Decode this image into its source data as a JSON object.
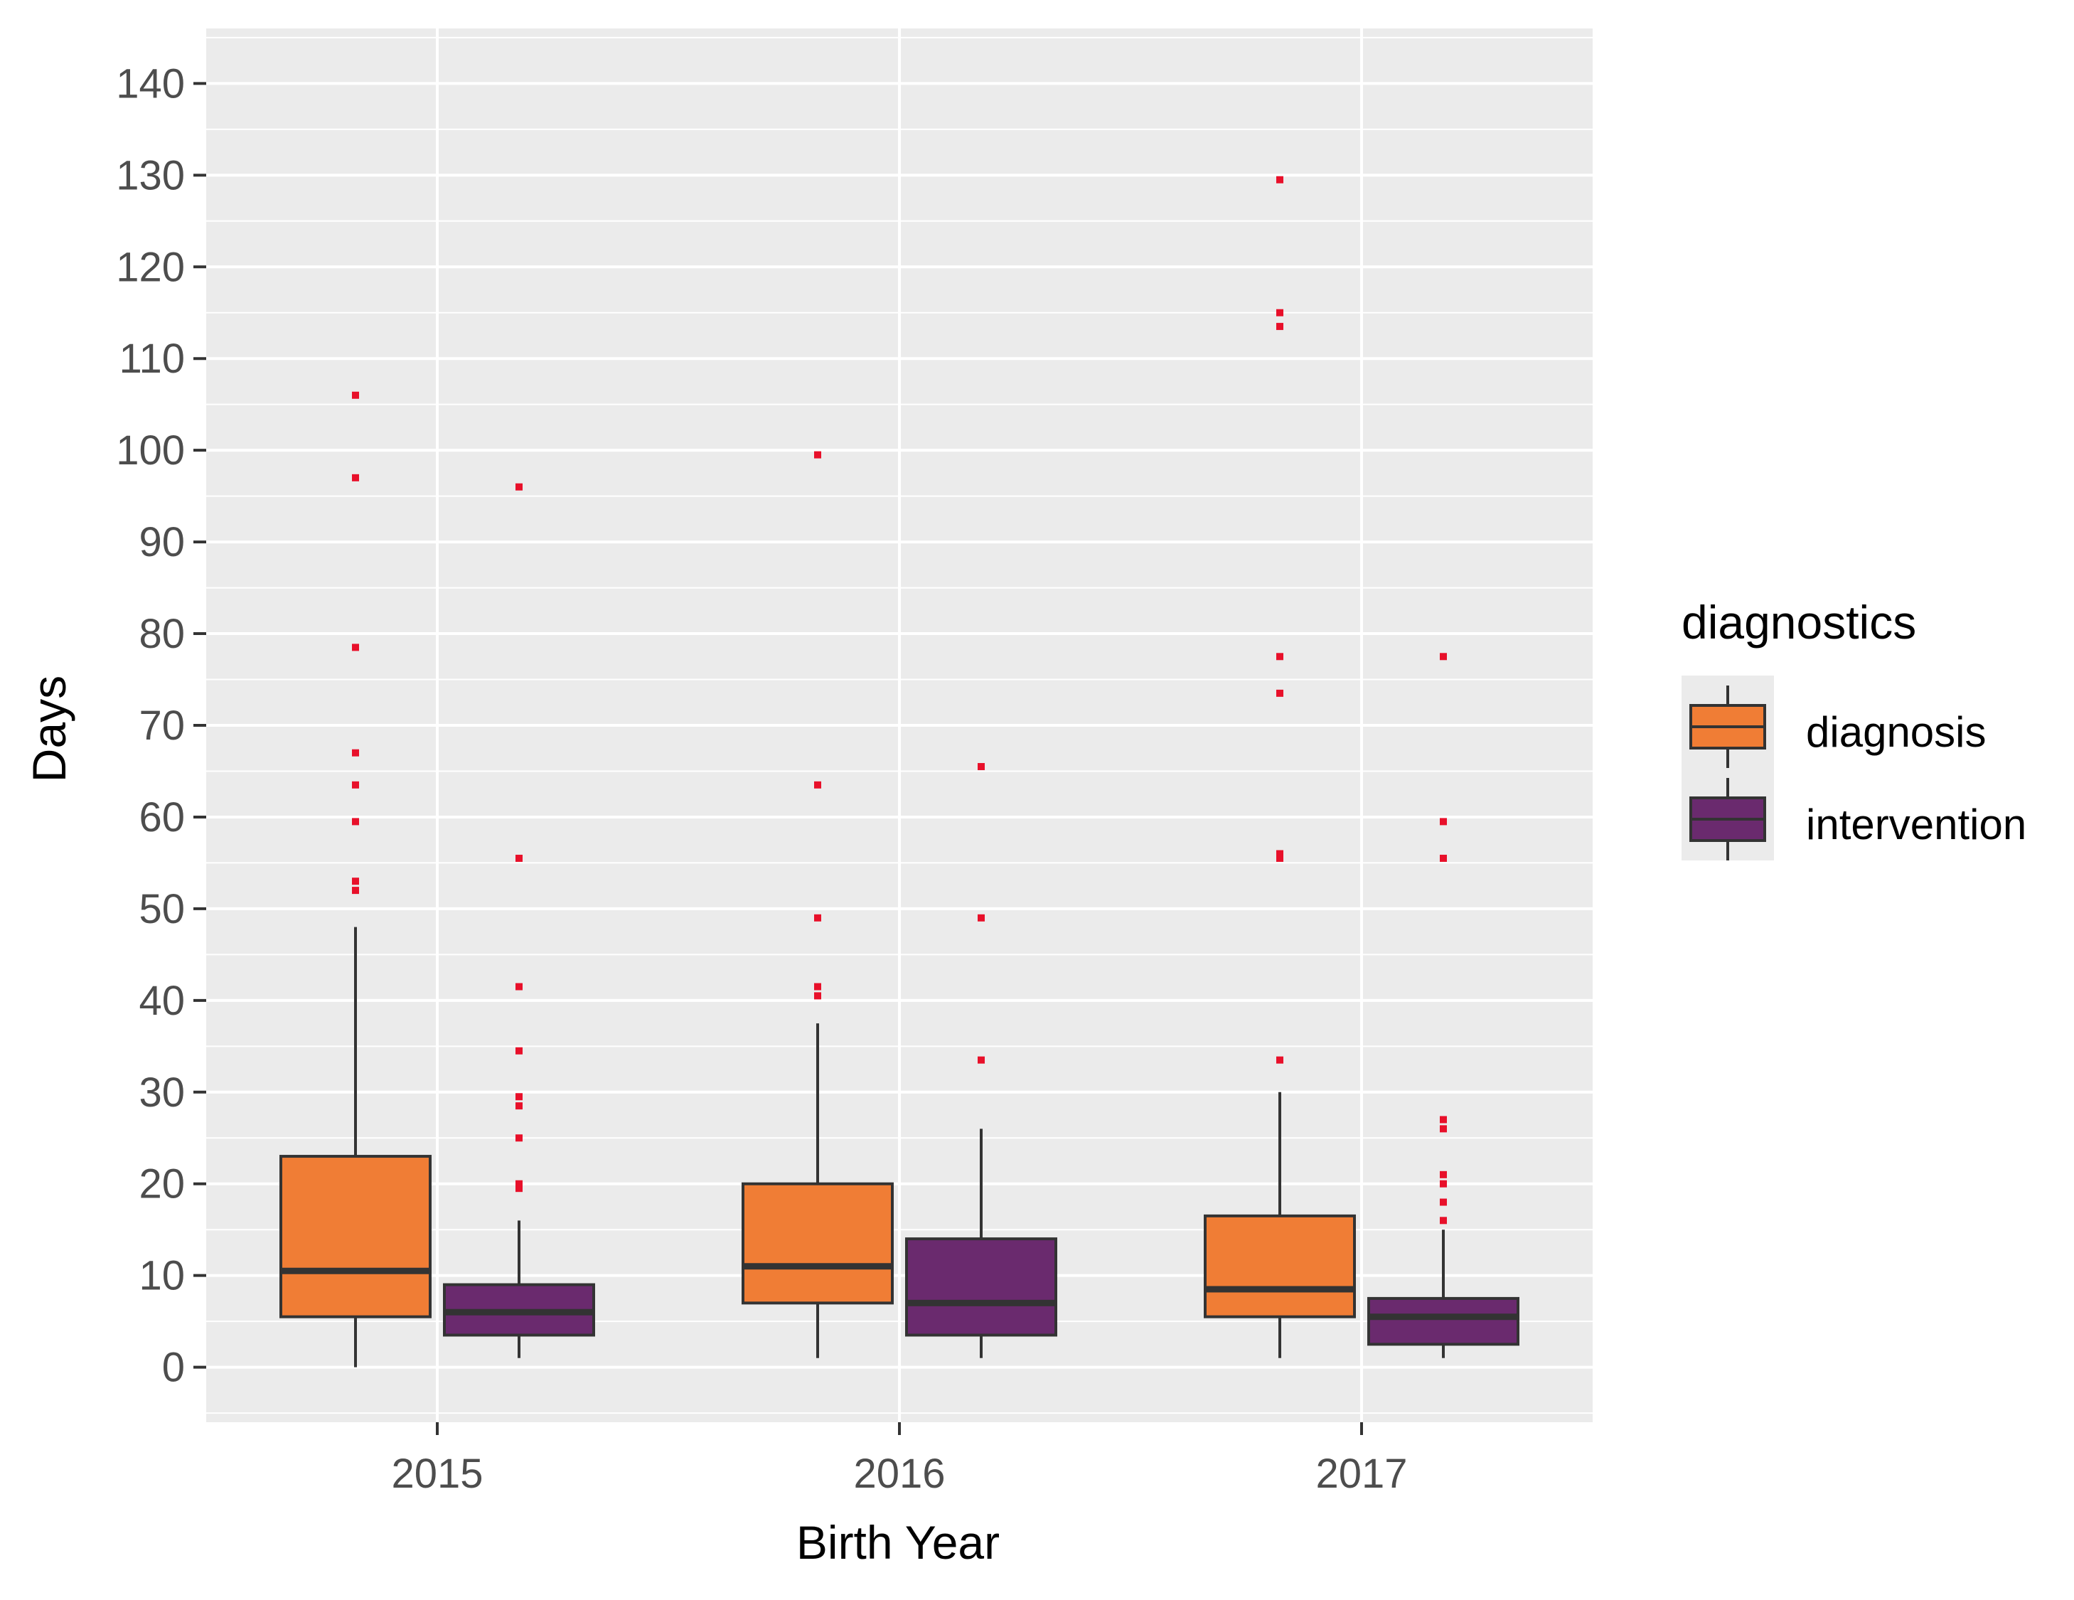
{
  "chart_data": {
    "type": "boxplot",
    "title": "",
    "xlabel": "Birth Year",
    "ylabel": "Days",
    "categories": [
      "2015",
      "2016",
      "2017"
    ],
    "ylim": [
      -6,
      146
    ],
    "yticks": [
      0,
      10,
      20,
      30,
      40,
      50,
      60,
      70,
      80,
      90,
      100,
      110,
      120,
      130,
      140
    ],
    "ytick_labels": [
      "0",
      "10",
      "20",
      "30",
      "40",
      "50",
      "60",
      "70",
      "80",
      "90",
      "100",
      "110",
      "120",
      "130",
      "140"
    ],
    "grid": true,
    "legend": {
      "title": "diagnostics",
      "position": "right",
      "entries": [
        "diagnosis",
        "intervention"
      ]
    },
    "colors": {
      "panel_background": "#ebebeb",
      "grid_line": "#ffffff",
      "diagnosis": "#f07d35",
      "intervention": "#6a2a6e",
      "box_outline": "#333333",
      "outlier": "#e8102a",
      "axis_text": "#4d4d4d",
      "axis_title": "#000000"
    },
    "series": [
      {
        "name": "diagnosis",
        "boxes": [
          {
            "category": "2015",
            "whisker_low": 0,
            "q1": 5.5,
            "median": 10.5,
            "q3": 23,
            "whisker_high": 48,
            "outliers": [
              52,
              53,
              59.5,
              63.5,
              67,
              78.5,
              97,
              106
            ]
          },
          {
            "category": "2016",
            "whisker_low": 1,
            "q1": 7,
            "median": 11,
            "q3": 20,
            "whisker_high": 37.5,
            "outliers": [
              40.5,
              41.5,
              49,
              63.5,
              99.5
            ]
          },
          {
            "category": "2017",
            "whisker_low": 1,
            "q1": 5.5,
            "median": 8.5,
            "q3": 16.5,
            "whisker_high": 30,
            "outliers": [
              33.5,
              55.5,
              56,
              73.5,
              77.5,
              113.5,
              115,
              129.5
            ]
          }
        ]
      },
      {
        "name": "intervention",
        "boxes": [
          {
            "category": "2015",
            "whisker_low": 1,
            "q1": 3.5,
            "median": 6,
            "q3": 9,
            "whisker_high": 16,
            "outliers": [
              19.5,
              20,
              25,
              28.5,
              29.5,
              34.5,
              41.5,
              55.5,
              96
            ]
          },
          {
            "category": "2016",
            "whisker_low": 1,
            "q1": 3.5,
            "median": 7,
            "q3": 14,
            "whisker_high": 26,
            "outliers": [
              33.5,
              49,
              65.5
            ]
          },
          {
            "category": "2017",
            "whisker_low": 1,
            "q1": 2.5,
            "median": 5.5,
            "q3": 7.5,
            "whisker_high": 15,
            "outliers": [
              16,
              18,
              20,
              21,
              26,
              27,
              55.5,
              59.5,
              77.5
            ]
          }
        ]
      }
    ]
  }
}
